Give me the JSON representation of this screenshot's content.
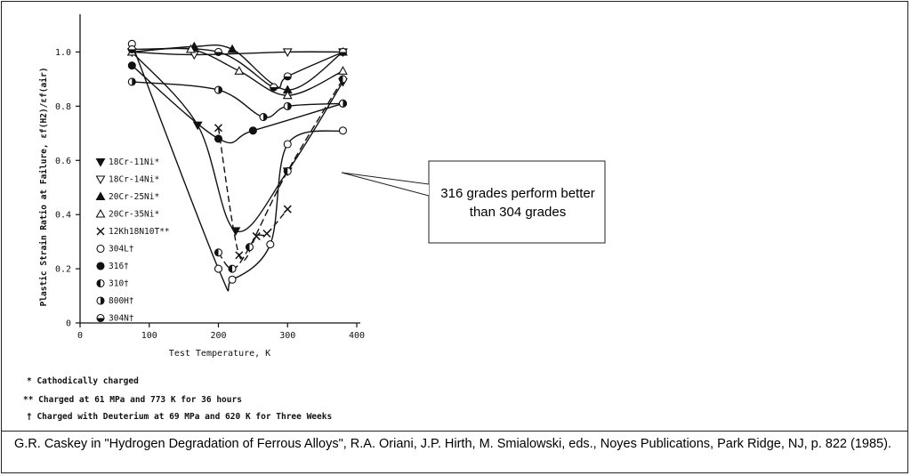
{
  "chart_data": {
    "type": "line",
    "xlabel": "Test Temperature, K",
    "ylabel": "Plastic Strain Ratio at Failure, εf(H2)/εf(air)",
    "xlim": [
      0,
      400
    ],
    "ylim": [
      0,
      1.1
    ],
    "x_ticks": [
      "0",
      "100",
      "200",
      "300",
      "400"
    ],
    "y_ticks": [
      "0",
      "0.2",
      "0.4",
      "0.6",
      "0.8",
      "1.0"
    ],
    "legend_position": "left-inside",
    "series": [
      {
        "name": "18Cr-11Ni*",
        "marker": "triangle-down-filled",
        "x": [
          75,
          170,
          225,
          300,
          380
        ],
        "y": [
          1.0,
          0.73,
          0.34,
          0.56,
          0.89
        ]
      },
      {
        "name": "18Cr-14Ni*",
        "marker": "triangle-down-open",
        "x": [
          75,
          165,
          300,
          380
        ],
        "y": [
          1.0,
          0.99,
          1.0,
          1.0
        ]
      },
      {
        "name": "20Cr-25Ni*",
        "marker": "triangle-up-filled",
        "x": [
          75,
          165,
          220,
          300,
          380
        ],
        "y": [
          1.0,
          1.02,
          1.01,
          0.86,
          1.0
        ]
      },
      {
        "name": "20Cr-35Ni*",
        "marker": "triangle-up-open",
        "x": [
          75,
          160,
          230,
          300,
          380
        ],
        "y": [
          1.0,
          1.01,
          0.93,
          0.84,
          0.93
        ]
      },
      {
        "name": "12Kh18N10T**",
        "marker": "x",
        "x": [
          200,
          230,
          255,
          270,
          300
        ],
        "y": [
          0.72,
          0.25,
          0.32,
          0.33,
          0.42
        ]
      },
      {
        "name": "304L†",
        "marker": "circle-open",
        "x": [
          75,
          200,
          220,
          275,
          300,
          380
        ],
        "y": [
          1.03,
          0.2,
          0.16,
          0.29,
          0.66,
          0.71
        ]
      },
      {
        "name": "316†",
        "marker": "circle-filled",
        "x": [
          75,
          200,
          250,
          380
        ],
        "y": [
          0.95,
          0.68,
          0.71,
          0.81
        ]
      },
      {
        "name": "310†",
        "marker": "circle-half-left",
        "x": [
          200,
          220,
          245,
          300,
          380
        ],
        "y": [
          0.26,
          0.2,
          0.28,
          0.56,
          0.9
        ]
      },
      {
        "name": "800H†",
        "marker": "circle-half-right",
        "x": [
          75,
          200,
          265,
          300,
          380
        ],
        "y": [
          0.89,
          0.86,
          0.76,
          0.8,
          0.81
        ]
      },
      {
        "name": "304N†",
        "marker": "circle-half-bottom",
        "x": [
          75,
          200,
          280,
          300,
          380
        ],
        "y": [
          1.01,
          1.0,
          0.87,
          0.91,
          1.0
        ]
      }
    ],
    "annotations": [
      "* Cathodically charged",
      "** Charged at 61 MPa and 773 K for 36 hours",
      "† Charged with Deuterium at 69 MPa and 620 K for Three Weeks"
    ]
  },
  "callout": {
    "text": "316 grades perform better than 304 grades"
  },
  "citation": {
    "text": "G.R. Caskey in \"Hydrogen Degradation of Ferrous Alloys\", R.A. Oriani, J.P. Hirth, M. Smialowski, eds., Noyes Publications, Park Ridge, NJ, p. 822 (1985)."
  }
}
